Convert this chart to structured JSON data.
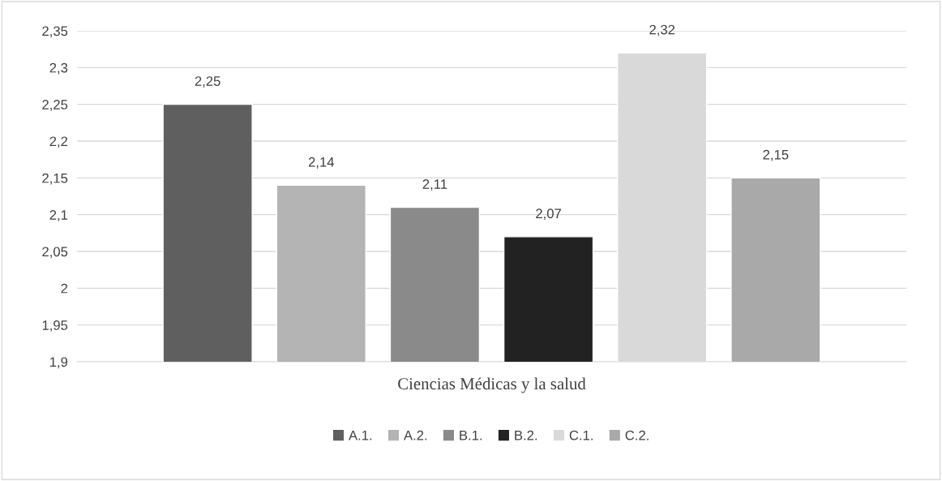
{
  "chart_data": {
    "type": "bar",
    "categories": [
      "Ciencias Médicas y la salud"
    ],
    "series": [
      {
        "name": "A.1.",
        "color": "#5f5f5f",
        "values": [
          2.25
        ],
        "value_labels": [
          "2,25"
        ]
      },
      {
        "name": "A.2.",
        "color": "#b4b4b4",
        "values": [
          2.14
        ],
        "value_labels": [
          "2,14"
        ]
      },
      {
        "name": "B.1.",
        "color": "#8a8a8a",
        "values": [
          2.11
        ],
        "value_labels": [
          "2,11"
        ]
      },
      {
        "name": "B.2.",
        "color": "#222222",
        "values": [
          2.07
        ],
        "value_labels": [
          "2,07"
        ]
      },
      {
        "name": "C.1.",
        "color": "#d9d9d9",
        "values": [
          2.32
        ],
        "value_labels": [
          "2,32"
        ]
      },
      {
        "name": "C.2.",
        "color": "#a9a9a9",
        "values": [
          2.15
        ],
        "value_labels": [
          "2,15"
        ]
      }
    ],
    "ylim": [
      1.9,
      2.35
    ],
    "yticks": [
      {
        "value": 1.9,
        "label": "1,9"
      },
      {
        "value": 1.95,
        "label": "1,95"
      },
      {
        "value": 2,
        "label": "2"
      },
      {
        "value": 2.05,
        "label": "2,05"
      },
      {
        "value": 2.1,
        "label": "2,1"
      },
      {
        "value": 2.15,
        "label": "2,15"
      },
      {
        "value": 2.2,
        "label": "2,2"
      },
      {
        "value": 2.25,
        "label": "2,25"
      },
      {
        "value": 2.3,
        "label": "2,3"
      },
      {
        "value": 2.35,
        "label": "2,35"
      }
    ],
    "grid": "y",
    "legend": "bottom"
  }
}
